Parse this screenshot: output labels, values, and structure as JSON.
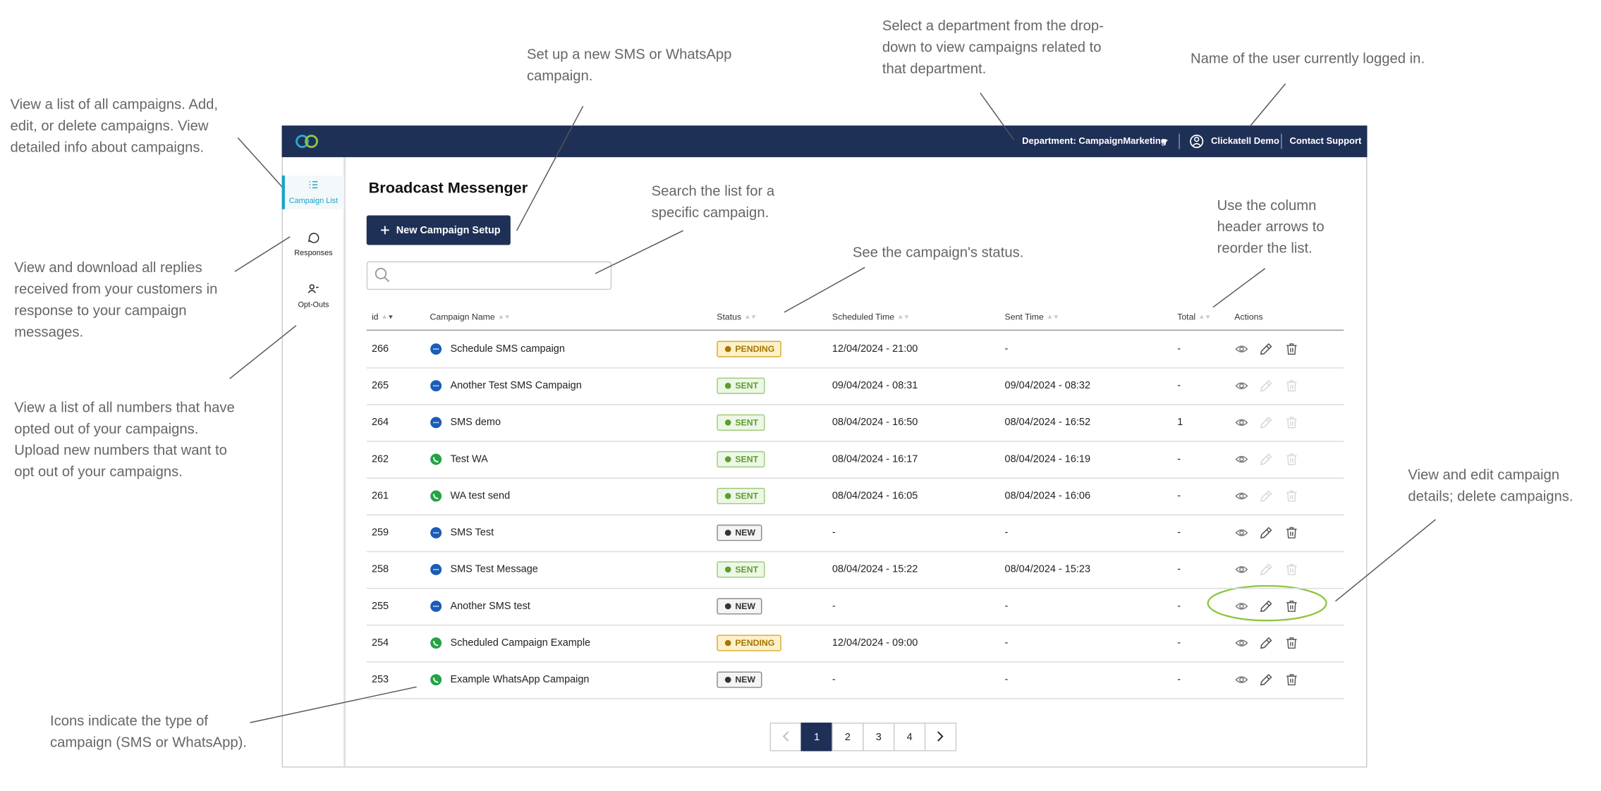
{
  "annotations": [
    {
      "lines": [
        "View a list of all campaigns. Add,",
        "edit, or delete campaigns. View",
        "detailed info about campaigns."
      ]
    },
    {
      "lines": [
        "View and download all replies",
        "received from your customers in",
        "response to your campaign",
        "messages."
      ]
    },
    {
      "lines": [
        "View a list of all numbers that have",
        "opted out of your campaigns.",
        "Upload new numbers that want to",
        "opt out of your campaigns."
      ]
    },
    {
      "lines": [
        "Icons indicate the type of",
        "campaign (SMS or WhatsApp)."
      ]
    },
    {
      "lines": [
        "Set up a new SMS or WhatsApp",
        "campaign."
      ]
    },
    {
      "lines": [
        "Search the list for a",
        "specific campaign."
      ]
    },
    {
      "lines": [
        "Select a department from the drop-",
        "down to view campaigns related to",
        "that department."
      ]
    },
    {
      "lines": [
        "See the campaign's status."
      ]
    },
    {
      "lines": [
        "Name of the user currently logged in."
      ]
    },
    {
      "lines": [
        "Use the column",
        "header arrows to",
        "reorder the list."
      ]
    },
    {
      "lines": [
        "View and edit campaign",
        "details; delete campaigns."
      ]
    }
  ],
  "header": {
    "department": "Department: CampaignMarketing",
    "user": "Clickatell Demo",
    "support": "Contact Support"
  },
  "nav": [
    {
      "label": "Campaign List",
      "active": true
    },
    {
      "label": "Responses",
      "active": false
    },
    {
      "label": "Opt-Outs",
      "active": false
    }
  ],
  "title": "Broadcast Messenger",
  "button": "New Campaign Setup",
  "table": {
    "columns": [
      "id",
      "Campaign Name",
      "Status",
      "Scheduled Time",
      "Sent Time",
      "Total",
      "Actions"
    ],
    "rows": [
      {
        "id": 266,
        "icon": "sms",
        "name": "Schedule SMS campaign",
        "status": {
          "label": "PENDING",
          "tone": "warning"
        },
        "scheduled": "12/04/2024 - 21:00",
        "sent": "-",
        "total": "-",
        "editable": true
      },
      {
        "id": 265,
        "icon": "sms",
        "name": "Another Test SMS Campaign",
        "status": {
          "label": "SENT",
          "tone": "success"
        },
        "scheduled": "09/04/2024 - 08:31",
        "sent": "09/04/2024 - 08:32",
        "total": "-",
        "editable": false
      },
      {
        "id": 264,
        "icon": "sms",
        "name": "SMS demo",
        "status": {
          "label": "SENT",
          "tone": "success"
        },
        "scheduled": "08/04/2024 - 16:50",
        "sent": "08/04/2024 - 16:52",
        "total": "1",
        "editable": false
      },
      {
        "id": 262,
        "icon": "whatsapp",
        "name": "Test WA",
        "status": {
          "label": "SENT",
          "tone": "success"
        },
        "scheduled": "08/04/2024 - 16:17",
        "sent": "08/04/2024 - 16:19",
        "total": "-",
        "editable": false
      },
      {
        "id": 261,
        "icon": "whatsapp",
        "name": "WA test send",
        "status": {
          "label": "SENT",
          "tone": "success"
        },
        "scheduled": "08/04/2024 - 16:05",
        "sent": "08/04/2024 - 16:06",
        "total": "-",
        "editable": false
      },
      {
        "id": 259,
        "icon": "sms",
        "name": "SMS Test",
        "status": {
          "label": "NEW",
          "tone": "neutral"
        },
        "scheduled": "-",
        "sent": "-",
        "total": "-",
        "editable": true
      },
      {
        "id": 258,
        "icon": "sms",
        "name": "SMS Test Message",
        "status": {
          "label": "SENT",
          "tone": "success"
        },
        "scheduled": "08/04/2024 - 15:22",
        "sent": "08/04/2024 - 15:23",
        "total": "-",
        "editable": false
      },
      {
        "id": 255,
        "icon": "sms",
        "name": "Another SMS test",
        "status": {
          "label": "NEW",
          "tone": "neutral"
        },
        "scheduled": "-",
        "sent": "-",
        "total": "-",
        "editable": true
      },
      {
        "id": 254,
        "icon": "whatsapp",
        "name": "Scheduled Campaign Example",
        "status": {
          "label": "PENDING",
          "tone": "warning"
        },
        "scheduled": "12/04/2024 - 09:00",
        "sent": "-",
        "total": "-",
        "editable": true
      },
      {
        "id": 253,
        "icon": "whatsapp",
        "name": "Example WhatsApp Campaign",
        "status": {
          "label": "NEW",
          "tone": "neutral"
        },
        "scheduled": "-",
        "sent": "-",
        "total": "-",
        "editable": true
      }
    ]
  },
  "pagination": {
    "pages": [
      1,
      2,
      3,
      4
    ],
    "current": 1
  }
}
